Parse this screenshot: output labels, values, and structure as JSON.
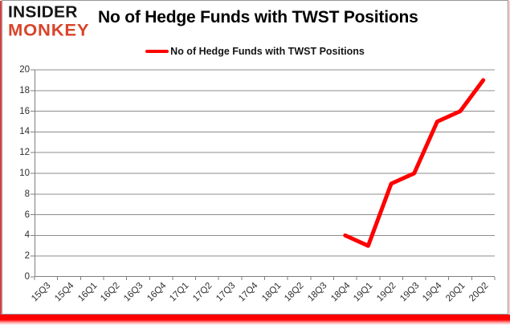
{
  "header": {
    "logo_line1": "INSIDER",
    "logo_line2": "MONKEY",
    "title": "No of Hedge Funds with TWST Positions"
  },
  "legend": {
    "label": "No of Hedge Funds with TWST Positions"
  },
  "colors": {
    "series": "#ff0000",
    "grid": "#8c8c8c",
    "axis": "#7f7f7f",
    "axis_text": "#2e2e2e",
    "logo_black": "#161616",
    "logo_red": "#d8442a",
    "frame_red": "#ff0000"
  },
  "chart_data": {
    "type": "line",
    "title": "No of Hedge Funds with TWST Positions",
    "categories": [
      "15Q3",
      "15Q4",
      "16Q1",
      "16Q2",
      "16Q3",
      "16Q4",
      "17Q1",
      "17Q2",
      "17Q3",
      "17Q4",
      "18Q1",
      "18Q2",
      "18Q3",
      "18Q4",
      "19Q1",
      "19Q2",
      "19Q3",
      "19Q4",
      "20Q1",
      "20Q2"
    ],
    "series": [
      {
        "name": "No of Hedge Funds with TWST Positions",
        "color": "#ff0000",
        "values": [
          null,
          null,
          null,
          null,
          null,
          null,
          null,
          null,
          null,
          null,
          null,
          null,
          null,
          4,
          3,
          9,
          10,
          15,
          16,
          19
        ]
      }
    ],
    "xlabel": "",
    "ylabel": "",
    "ylim": [
      0,
      20
    ],
    "ytick_step": 2,
    "grid": true,
    "legend_position": "top-center"
  }
}
